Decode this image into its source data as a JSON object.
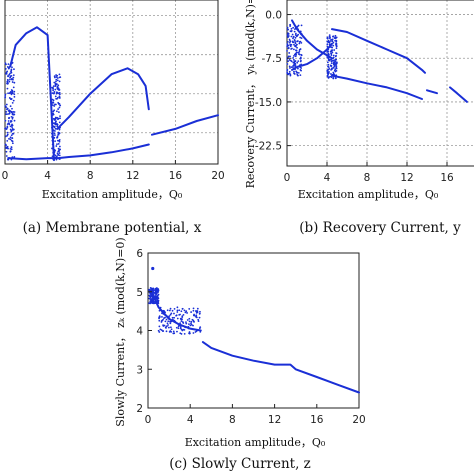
{
  "figure": {
    "panels": [
      {
        "caption": "(a) Membrane potential, x",
        "xlabel": "Excitation amplitude，Q₀",
        "ylabel": ""
      },
      {
        "caption": "(b) Recovery Current, y",
        "xlabel": "Excitation amplitude，Q₀",
        "ylabel": "Recovery Current， yₖ (mod(k,N)=0)"
      },
      {
        "caption": "(c) Slowly Current, z",
        "xlabel": "Excitation amplitude，Q₀",
        "ylabel": "Slowly Current， zₖ (mod(k,N)=0)"
      }
    ]
  },
  "chart_data": [
    {
      "type": "scatter",
      "title": "",
      "xlabel": "Excitation amplitude，Q₀",
      "ylabel": "",
      "xlim": [
        0,
        20
      ],
      "ylim": [
        -2.0,
        2.2
      ],
      "xticks": [
        0,
        4,
        8,
        12,
        16,
        20
      ],
      "yticks": [],
      "grid": true,
      "color": "#1a2fd6",
      "chaotic_bands": [
        {
          "x": [
            0.0,
            0.9
          ],
          "y": [
            -1.9,
            0.6
          ]
        },
        {
          "x": [
            4.4,
            5.2
          ],
          "y": [
            -1.9,
            0.3
          ]
        }
      ],
      "series": [
        {
          "x": [
            0.5,
            1.0,
            2.0,
            3.0,
            4.0,
            4.6
          ],
          "y": [
            0.5,
            1.05,
            1.35,
            1.5,
            1.3,
            -1.9
          ]
        },
        {
          "x": [
            4.9,
            6.0,
            8.0,
            10.0,
            11.5,
            12.5,
            13.2,
            13.5
          ],
          "y": [
            -1.1,
            -0.8,
            -0.2,
            0.3,
            0.45,
            0.3,
            0.0,
            -0.6
          ]
        },
        {
          "x": [
            0.3,
            2.0,
            4.0,
            5.0,
            6.0,
            8.0,
            10.0,
            12.0,
            13.5
          ],
          "y": [
            -1.85,
            -1.88,
            -1.85,
            -1.85,
            -1.82,
            -1.78,
            -1.7,
            -1.6,
            -1.5
          ]
        },
        {
          "x": [
            13.8,
            16.0,
            18.0,
            20.0
          ],
          "y": [
            -1.25,
            -1.1,
            -0.9,
            -0.75
          ]
        }
      ]
    },
    {
      "type": "scatter",
      "title": "",
      "xlabel": "Excitation amplitude，Q₀",
      "ylabel": "Recovery Current， yₖ (mod(k,N)=0)",
      "xlim": [
        0,
        20
      ],
      "ylim": [
        -26,
        2.5
      ],
      "xticks": [
        0,
        4,
        8,
        12,
        16
      ],
      "yticks": [
        0.0,
        -7.5,
        -15.0,
        -22.5
      ],
      "grid": true,
      "color": "#1a2fd6",
      "chaotic_bands": [
        {
          "x": [
            0.0,
            1.5
          ],
          "y": [
            -10.5,
            -1.5
          ]
        },
        {
          "x": [
            4.0,
            5.0
          ],
          "y": [
            -11.0,
            -3.5
          ]
        }
      ],
      "series": [
        {
          "x": [
            0.5,
            1.0,
            2.0,
            3.0,
            4.0,
            4.5
          ],
          "y": [
            -1.0,
            -2.5,
            -4.5,
            -6.0,
            -7.0,
            -7.5
          ]
        },
        {
          "x": [
            0.5,
            1.0,
            2.0,
            3.0,
            4.0,
            4.5
          ],
          "y": [
            -9.5,
            -9.0,
            -8.5,
            -7.5,
            -6.0,
            -5.0
          ]
        },
        {
          "x": [
            4.5,
            6.0,
            8.0,
            10.0,
            12.0,
            13.5,
            13.8
          ],
          "y": [
            -2.5,
            -3.0,
            -4.5,
            -6.0,
            -7.5,
            -9.5,
            -10.0
          ]
        },
        {
          "x": [
            4.5,
            6.0,
            8.0,
            10.0,
            12.0,
            13.5
          ],
          "y": [
            -10.5,
            -11.0,
            -11.8,
            -12.5,
            -13.5,
            -14.5
          ]
        },
        {
          "x": [
            14.0,
            15.0
          ],
          "y": [
            -13.0,
            -13.5
          ]
        },
        {
          "x": [
            16.3,
            17.0,
            18.0
          ],
          "y": [
            -12.5,
            -13.5,
            -15.0
          ]
        }
      ]
    },
    {
      "type": "scatter",
      "title": "",
      "xlabel": "Excitation amplitude，Q₀",
      "ylabel": "Slowly Current， zₖ (mod(k,N)=0)",
      "xlim": [
        0,
        20
      ],
      "ylim": [
        2,
        6
      ],
      "xticks": [
        0,
        4,
        8,
        12,
        16,
        20
      ],
      "yticks": [
        2,
        3,
        4,
        5,
        6
      ],
      "grid": false,
      "color": "#1a2fd6",
      "chaotic_bands": [
        {
          "x": [
            0.1,
            1.0
          ],
          "y": [
            4.7,
            5.1
          ]
        },
        {
          "x": [
            1.0,
            5.0
          ],
          "y": [
            3.9,
            4.6
          ]
        }
      ],
      "series": [
        {
          "x": [
            0.1,
            0.5,
            1.0,
            2.0,
            3.0,
            4.0,
            5.0
          ],
          "y": [
            5.05,
            4.9,
            4.6,
            4.3,
            4.15,
            4.05,
            4.0
          ]
        },
        {
          "x": [
            5.2,
            6.0,
            8.0,
            10.0,
            12.0,
            13.5,
            14.0,
            16.0,
            18.0,
            20.0
          ],
          "y": [
            3.7,
            3.55,
            3.35,
            3.22,
            3.12,
            3.12,
            3.0,
            2.8,
            2.6,
            2.4
          ]
        },
        {
          "x": [
            0.45
          ],
          "y": [
            5.6
          ]
        }
      ]
    }
  ]
}
